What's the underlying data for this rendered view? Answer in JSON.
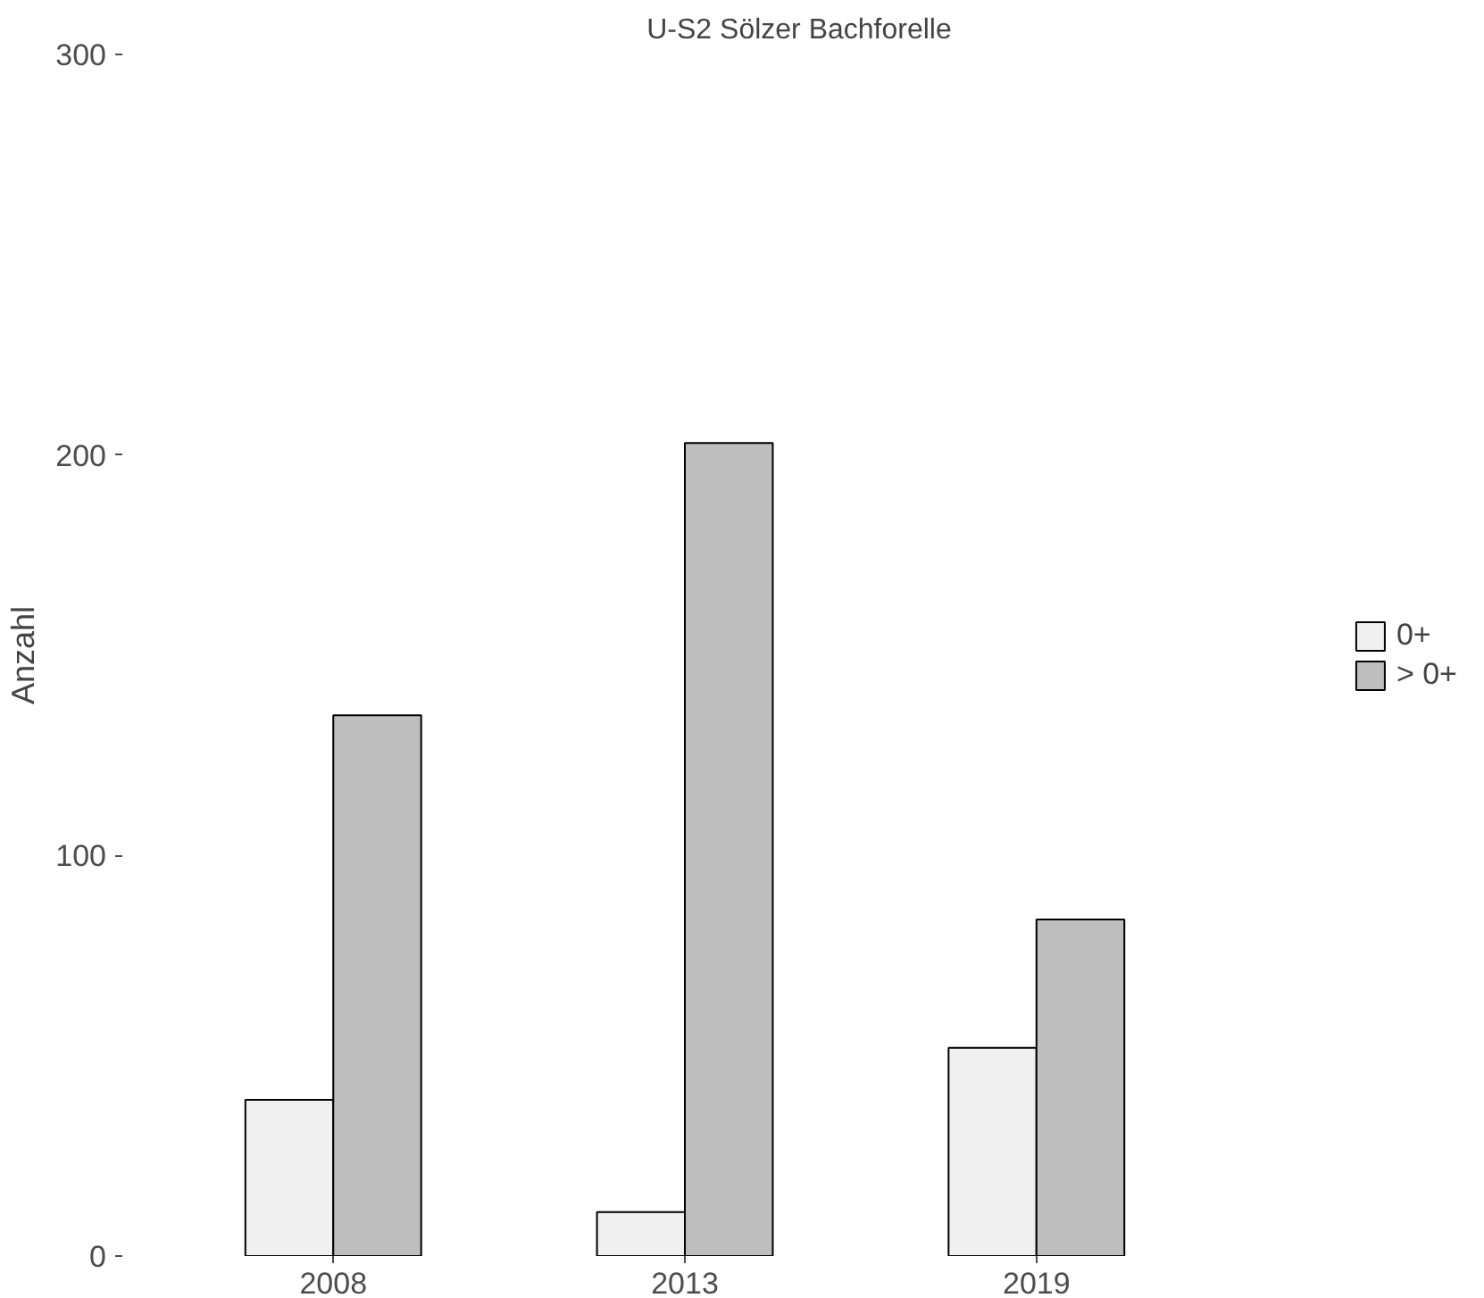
{
  "chart_data": {
    "type": "bar",
    "title": "U-S2 Sölzer Bachforelle",
    "ylabel": "Anzahl",
    "categories": [
      "2008",
      "2013",
      "2019"
    ],
    "series": [
      {
        "name": "0+",
        "color": "#f0f0f0",
        "values": [
          39,
          11,
          52
        ]
      },
      {
        "name": "> 0+",
        "color": "#bebebe",
        "values": [
          135,
          203,
          84
        ]
      }
    ],
    "ylim": [
      0,
      300
    ],
    "yticks": [
      0,
      100,
      200,
      300
    ],
    "grid": false,
    "legend": "right"
  }
}
